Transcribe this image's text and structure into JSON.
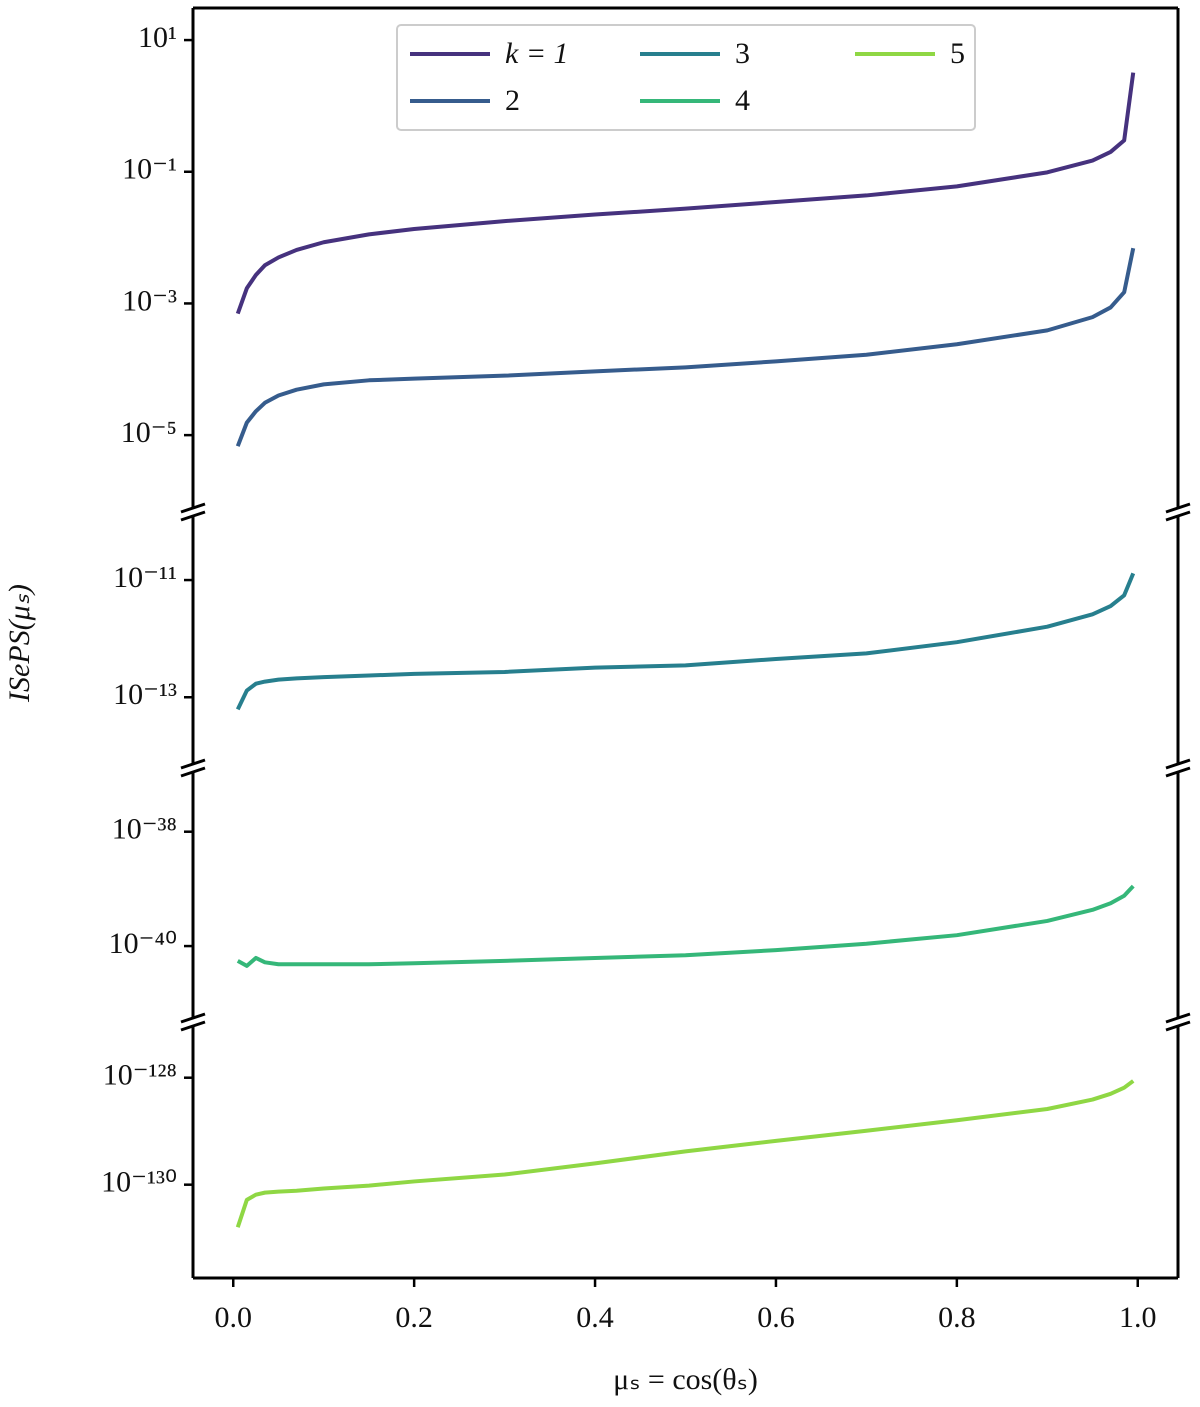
{
  "chart_data": {
    "type": "line",
    "log_y": true,
    "xlabel": "μₛ = cos(θₛ)",
    "ylabel": "ISePS(μₛ)",
    "xlim": [
      -0.0445,
      1.0445
    ],
    "xticks": [
      {
        "value": 0,
        "label": "0.0"
      },
      0.2,
      0.4,
      0.6,
      0.8,
      {
        "value": 1,
        "label": "1.0"
      }
    ],
    "legend": "upper center",
    "panels": [
      {
        "ylim": [
          6.8e-07,
          30.7
        ],
        "yticks": [
          {
            "value": 10,
            "label": "10¹"
          },
          {
            "value": 0.1,
            "label": "10⁻¹"
          },
          {
            "value": 0.001,
            "label": "10⁻³"
          },
          {
            "value": 1e-05,
            "label": "10⁻⁵"
          }
        ]
      },
      {
        "ylim": [
          6.2e-15,
          1.45e-10
        ],
        "yticks": [
          {
            "value": 1e-11,
            "label": "10⁻¹¹"
          },
          {
            "value": 1e-13,
            "label": "10⁻¹³"
          }
        ]
      },
      {
        "ylim": [
          4.7e-42,
          1.3e-37
        ],
        "yticks": [
          {
            "value": 1e-38,
            "label": "10⁻³⁸"
          },
          {
            "value": 1e-40,
            "label": "10⁻⁴⁰"
          }
        ]
      },
      {
        "ylim": [
          1.8e-132,
          1.1e-127
        ],
        "yticks": [
          {
            "value": 1e-128,
            "label": "10⁻¹²⁸"
          },
          {
            "value": 1e-130,
            "label": "10⁻¹³⁰"
          }
        ]
      }
    ],
    "x": [
      0.005,
      0.015,
      0.025,
      0.035,
      0.05,
      0.07,
      0.1,
      0.15,
      0.2,
      0.3,
      0.4,
      0.5,
      0.6,
      0.7,
      0.8,
      0.9,
      0.95,
      0.97,
      0.985,
      0.995
    ],
    "series": [
      {
        "name": "k = 1",
        "color": "#46327e",
        "panel": 0,
        "values": [
          0.0007,
          0.0017,
          0.0027,
          0.0038,
          0.005,
          0.0065,
          0.0085,
          0.0112,
          0.0135,
          0.0178,
          0.0224,
          0.0275,
          0.0347,
          0.0437,
          0.06,
          0.098,
          0.148,
          0.2,
          0.3,
          3.2
        ]
      },
      {
        "name": "2",
        "color": "#365c8d",
        "panel": 0,
        "values": [
          6.8e-06,
          1.55e-05,
          2.3e-05,
          3.1e-05,
          4e-05,
          4.9e-05,
          5.9e-05,
          6.8e-05,
          7.2e-05,
          8e-05,
          9.3e-05,
          0.000107,
          0.000132,
          0.000166,
          0.00024,
          0.00039,
          0.00062,
          0.00087,
          0.00148,
          0.0069
        ]
      },
      {
        "name": "3",
        "color": "#277f8e",
        "panel": 1,
        "values": [
          6.2e-14,
          1.3e-13,
          1.7e-13,
          1.85e-13,
          2e-13,
          2.1e-13,
          2.2e-13,
          2.35e-13,
          2.5e-13,
          2.7e-13,
          3.2e-13,
          3.5e-13,
          4.5e-13,
          5.6e-13,
          8.7e-13,
          1.6e-12,
          2.6e-12,
          3.6e-12,
          5.5e-12,
          1.3e-11
        ]
      },
      {
        "name": "4",
        "color": "#35b779",
        "panel": 2,
        "values": [
          5.5e-41,
          4.5e-41,
          6.2e-41,
          5.2e-41,
          4.8e-41,
          4.8e-41,
          4.8e-41,
          4.8e-41,
          5e-41,
          5.5e-41,
          6.2e-41,
          6.9e-41,
          8.5e-41,
          1.1e-40,
          1.55e-40,
          2.75e-40,
          4.3e-40,
          5.6e-40,
          7.6e-40,
          1.12e-39
        ]
      },
      {
        "name": "5",
        "color": "#8fd744",
        "panel": 3,
        "values": [
          1.6e-131,
          5.2e-131,
          6.5e-131,
          7.1e-131,
          7.4e-131,
          7.7e-131,
          8.5e-131,
          9.6e-131,
          1.15e-130,
          1.55e-130,
          2.5e-130,
          4.2e-130,
          6.6e-130,
          1.02e-129,
          1.6e-129,
          2.6e-129,
          3.9e-129,
          5e-129,
          6.5e-129,
          8.7e-129
        ]
      }
    ]
  }
}
